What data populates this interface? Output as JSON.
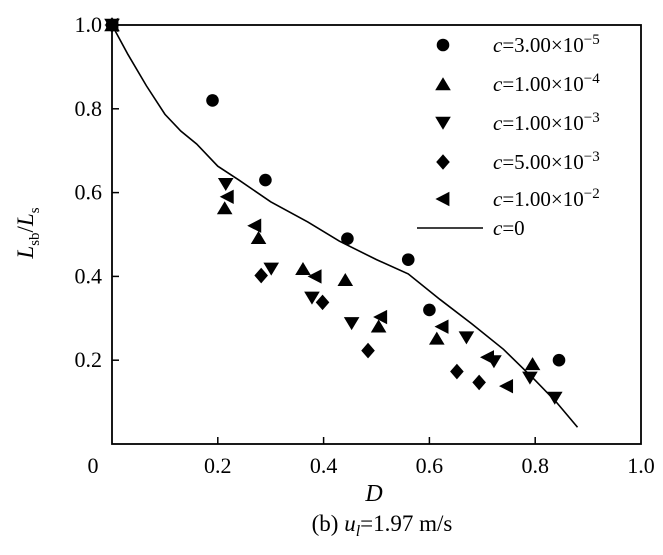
{
  "figure": {
    "ink": "#000000",
    "background": "#ffffff"
  },
  "chart_data": {
    "type": "scatter",
    "xlabel": "D",
    "ylabel": "Lsb/Ls",
    "ylabel_parts": [
      {
        "t": "L",
        "italic": true
      },
      {
        "t": "sb",
        "sub": true
      },
      {
        "t": "/",
        "italic": false
      },
      {
        "t": "L",
        "italic": true
      },
      {
        "t": "s",
        "sub": true
      }
    ],
    "caption_parts": {
      "prefix": "(b) ",
      "var": "u",
      "sub": "l",
      "rest": "=1.97 m/s"
    },
    "xlim": [
      0,
      1.0
    ],
    "ylim": [
      0,
      1.0
    ],
    "x_ticks": [
      0,
      0.2,
      0.4,
      0.6,
      0.8,
      1.0
    ],
    "x_tick_labels": [
      "0",
      "0.2",
      "0.4",
      "0.6",
      "0.8",
      "1.0"
    ],
    "y_ticks": [
      0.2,
      0.4,
      0.6,
      0.8,
      1.0
    ],
    "y_tick_labels": [
      "0.2",
      "0.4",
      "0.6",
      "0.8",
      "1.0"
    ],
    "grid": false,
    "legend_position": "top-right-inside",
    "series": [
      {
        "marker": "circle",
        "label_var": "c",
        "label_rest": "=3.00×10",
        "label_exp": "−5",
        "points": [
          [
            0,
            1.0
          ],
          [
            0.19,
            0.82
          ],
          [
            0.29,
            0.63
          ],
          [
            0.445,
            0.49
          ],
          [
            0.56,
            0.44
          ],
          [
            0.6,
            0.32
          ],
          [
            0.845,
            0.2
          ]
        ]
      },
      {
        "marker": "triangle-up",
        "label_var": "c",
        "label_rest": "=1.00×10",
        "label_exp": "−4",
        "points": [
          [
            0,
            1.0
          ],
          [
            0.213,
            0.563
          ],
          [
            0.277,
            0.492
          ],
          [
            0.361,
            0.418
          ],
          [
            0.441,
            0.392
          ],
          [
            0.504,
            0.281
          ],
          [
            0.614,
            0.252
          ],
          [
            0.795,
            0.191
          ]
        ]
      },
      {
        "marker": "triangle-down",
        "label_var": "c",
        "label_rest": "=1.00×10",
        "label_exp": "−3",
        "points": [
          [
            0,
            1.0
          ],
          [
            0.215,
            0.62
          ],
          [
            0.301,
            0.418
          ],
          [
            0.378,
            0.349
          ],
          [
            0.453,
            0.288
          ],
          [
            0.67,
            0.254
          ],
          [
            0.722,
            0.197
          ],
          [
            0.79,
            0.158
          ],
          [
            0.837,
            0.11
          ]
        ]
      },
      {
        "marker": "diamond",
        "label_var": "c",
        "label_rest": "=5.00×10",
        "label_exp": "−3",
        "points": [
          [
            0,
            1.0
          ],
          [
            0.282,
            0.402
          ],
          [
            0.398,
            0.338
          ],
          [
            0.484,
            0.223
          ],
          [
            0.652,
            0.173
          ],
          [
            0.694,
            0.147
          ]
        ]
      },
      {
        "marker": "triangle-left",
        "label_var": "c",
        "label_rest": "=1.00×10",
        "label_exp": "−2",
        "points": [
          [
            0,
            1.0
          ],
          [
            0.218,
            0.59
          ],
          [
            0.27,
            0.521
          ],
          [
            0.384,
            0.4
          ],
          [
            0.508,
            0.303
          ],
          [
            0.624,
            0.28
          ],
          [
            0.71,
            0.207
          ],
          [
            0.746,
            0.138
          ]
        ]
      }
    ],
    "line_series": {
      "label_var": "c",
      "label_rest": "=0",
      "label_exp": "",
      "points": [
        [
          0,
          1.0
        ],
        [
          0.03,
          0.93
        ],
        [
          0.065,
          0.855
        ],
        [
          0.1,
          0.787
        ],
        [
          0.13,
          0.747
        ],
        [
          0.16,
          0.716
        ],
        [
          0.2,
          0.663
        ],
        [
          0.24,
          0.63
        ],
        [
          0.3,
          0.578
        ],
        [
          0.37,
          0.53
        ],
        [
          0.43,
          0.484
        ],
        [
          0.5,
          0.44
        ],
        [
          0.56,
          0.406
        ],
        [
          0.62,
          0.345
        ],
        [
          0.68,
          0.287
        ],
        [
          0.74,
          0.226
        ],
        [
          0.8,
          0.152
        ],
        [
          0.84,
          0.1
        ],
        [
          0.88,
          0.04
        ]
      ]
    }
  }
}
